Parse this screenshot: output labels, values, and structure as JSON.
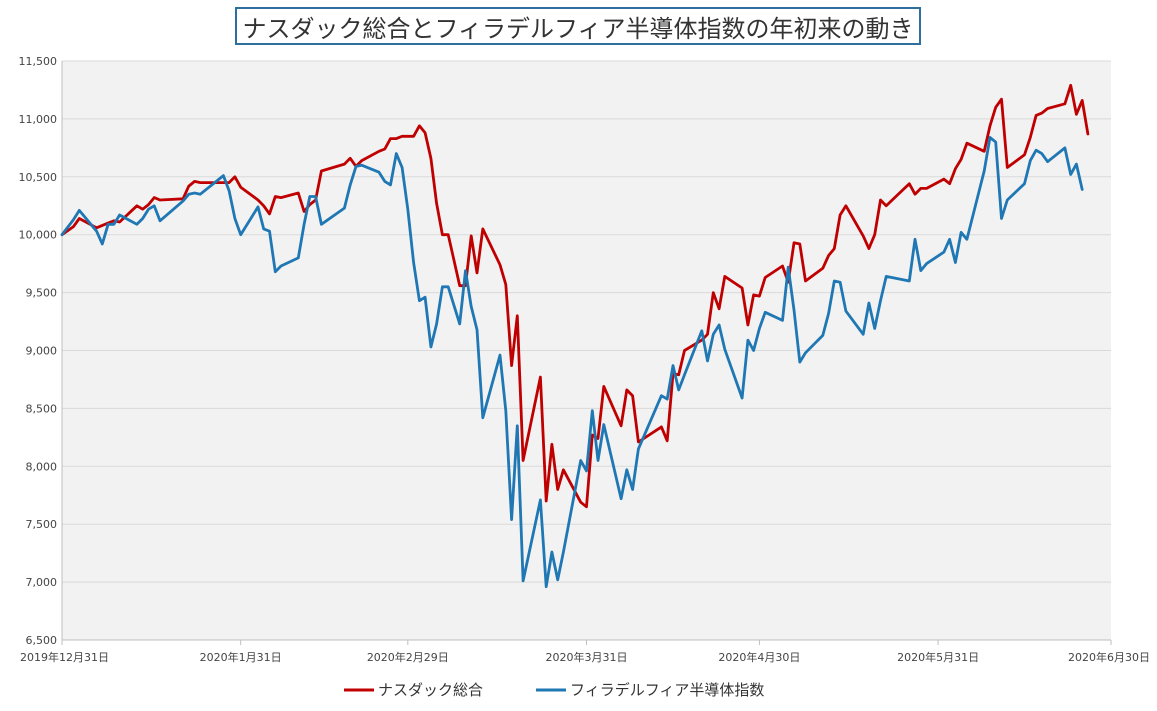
{
  "chart_data": {
    "type": "line",
    "title": "ナスダック総合とフィラデルフィア半導体指数の年初来の動き",
    "ylim": [
      6500,
      11500
    ],
    "yticks": [
      6500,
      7000,
      7500,
      8000,
      8500,
      9000,
      9500,
      10000,
      10500,
      11000,
      11500
    ],
    "ytick_labels": [
      "6,500",
      "7,000",
      "7,500",
      "8,000",
      "8,500",
      "9,000",
      "9,500",
      "10,000",
      "10,500",
      "11,000",
      "11,500"
    ],
    "xlim": [
      "2019-12-31",
      "2020-06-30"
    ],
    "xticks": [
      "2019-12-31",
      "2020-01-31",
      "2020-02-29",
      "2020-03-31",
      "2020-04-30",
      "2020-05-31",
      "2020-06-30"
    ],
    "xtick_labels": [
      "2019年12月31日",
      "2020年1月31日",
      "2020年2月29日",
      "2020年3月31日",
      "2020年4月30日",
      "2020年5月31日",
      "2020年6月30日"
    ],
    "grid": true,
    "legend_position": "bottom",
    "series": [
      {
        "name": "ナスダック総合",
        "color": "#c00000",
        "points": [
          [
            "2019-12-31",
            10000
          ],
          [
            "2020-01-02",
            10070
          ],
          [
            "2020-01-03",
            10140
          ],
          [
            "2020-01-06",
            10060
          ],
          [
            "2020-01-07",
            10080
          ],
          [
            "2020-01-08",
            10100
          ],
          [
            "2020-01-09",
            10120
          ],
          [
            "2020-01-10",
            10110
          ],
          [
            "2020-01-13",
            10250
          ],
          [
            "2020-01-14",
            10220
          ],
          [
            "2020-01-15",
            10260
          ],
          [
            "2020-01-16",
            10320
          ],
          [
            "2020-01-17",
            10300
          ],
          [
            "2020-01-21",
            10310
          ],
          [
            "2020-01-22",
            10420
          ],
          [
            "2020-01-23",
            10460
          ],
          [
            "2020-01-24",
            10450
          ],
          [
            "2020-01-28",
            10450
          ],
          [
            "2020-01-29",
            10450
          ],
          [
            "2020-01-30",
            10500
          ],
          [
            "2020-01-31",
            10410
          ],
          [
            "2020-02-03",
            10300
          ],
          [
            "2020-02-04",
            10250
          ],
          [
            "2020-02-05",
            10180
          ],
          [
            "2020-02-06",
            10330
          ],
          [
            "2020-02-07",
            10320
          ],
          [
            "2020-02-10",
            10360
          ],
          [
            "2020-02-11",
            10200
          ],
          [
            "2020-02-12",
            10260
          ],
          [
            "2020-02-13",
            10300
          ],
          [
            "2020-02-14",
            10550
          ],
          [
            "2020-02-18",
            10610
          ],
          [
            "2020-02-19",
            10660
          ],
          [
            "2020-02-20",
            10590
          ],
          [
            "2020-02-21",
            10640
          ],
          [
            "2020-02-24",
            10720
          ],
          [
            "2020-02-25",
            10740
          ],
          [
            "2020-02-26",
            10830
          ],
          [
            "2020-02-27",
            10830
          ],
          [
            "2020-02-28",
            10850
          ],
          [
            "2020-02-29",
            10850
          ],
          [
            "2020-03-01",
            10850
          ],
          [
            "2020-03-02",
            10940
          ],
          [
            "2020-03-03",
            10880
          ],
          [
            "2020-03-04",
            10660
          ],
          [
            "2020-03-05",
            10270
          ],
          [
            "2020-03-06",
            10000
          ],
          [
            "2020-03-07",
            10000
          ],
          [
            "2020-03-09",
            9560
          ],
          [
            "2020-03-10",
            9560
          ],
          [
            "2020-03-11",
            9990
          ],
          [
            "2020-03-12",
            9670
          ],
          [
            "2020-03-13",
            10050
          ],
          [
            "2020-03-16",
            9740
          ],
          [
            "2020-03-17",
            9570
          ],
          [
            "2020-03-18",
            8870
          ],
          [
            "2020-03-19",
            9300
          ],
          [
            "2020-03-20",
            8050
          ],
          [
            "2020-03-23",
            8770
          ],
          [
            "2020-03-24",
            7700
          ],
          [
            "2020-03-25",
            8190
          ],
          [
            "2020-03-26",
            7800
          ],
          [
            "2020-03-27",
            7970
          ],
          [
            "2020-03-30",
            7690
          ],
          [
            "2020-03-31",
            7650
          ],
          [
            "2020-04-01",
            8270
          ],
          [
            "2020-04-02",
            8240
          ],
          [
            "2020-04-03",
            8690
          ],
          [
            "2020-04-06",
            8350
          ],
          [
            "2020-04-07",
            8660
          ],
          [
            "2020-04-08",
            8610
          ],
          [
            "2020-04-09",
            8210
          ],
          [
            "2020-04-13",
            8340
          ],
          [
            "2020-04-14",
            8220
          ],
          [
            "2020-04-15",
            8800
          ],
          [
            "2020-04-16",
            8790
          ],
          [
            "2020-04-17",
            9000
          ],
          [
            "2020-04-20",
            9090
          ],
          [
            "2020-04-21",
            9140
          ],
          [
            "2020-04-22",
            9500
          ],
          [
            "2020-04-23",
            9360
          ],
          [
            "2020-04-24",
            9640
          ],
          [
            "2020-04-27",
            9540
          ],
          [
            "2020-04-28",
            9220
          ],
          [
            "2020-04-29",
            9480
          ],
          [
            "2020-04-30",
            9470
          ],
          [
            "2020-05-01",
            9630
          ],
          [
            "2020-05-04",
            9730
          ],
          [
            "2020-05-05",
            9590
          ],
          [
            "2020-05-06",
            9930
          ],
          [
            "2020-05-07",
            9920
          ],
          [
            "2020-05-08",
            9600
          ],
          [
            "2020-05-11",
            9710
          ],
          [
            "2020-05-12",
            9820
          ],
          [
            "2020-05-13",
            9880
          ],
          [
            "2020-05-14",
            10170
          ],
          [
            "2020-05-15",
            10250
          ],
          [
            "2020-05-18",
            9990
          ],
          [
            "2020-05-19",
            9880
          ],
          [
            "2020-05-20",
            10000
          ],
          [
            "2020-05-21",
            10300
          ],
          [
            "2020-05-22",
            10250
          ],
          [
            "2020-05-26",
            10440
          ],
          [
            "2020-05-27",
            10350
          ],
          [
            "2020-05-28",
            10400
          ],
          [
            "2020-05-29",
            10400
          ],
          [
            "2020-06-01",
            10480
          ],
          [
            "2020-06-02",
            10440
          ],
          [
            "2020-06-03",
            10570
          ],
          [
            "2020-06-04",
            10650
          ],
          [
            "2020-06-05",
            10790
          ],
          [
            "2020-06-08",
            10720
          ],
          [
            "2020-06-09",
            10940
          ],
          [
            "2020-06-10",
            11100
          ],
          [
            "2020-06-11",
            11170
          ],
          [
            "2020-06-12",
            10580
          ],
          [
            "2020-06-15",
            10690
          ],
          [
            "2020-06-16",
            10840
          ],
          [
            "2020-06-17",
            11030
          ],
          [
            "2020-06-18",
            11050
          ],
          [
            "2020-06-19",
            11090
          ],
          [
            "2020-06-22",
            11130
          ],
          [
            "2020-06-23",
            11290
          ],
          [
            "2020-06-24",
            11040
          ],
          [
            "2020-06-25",
            11160
          ],
          [
            "2020-06-26",
            10870
          ]
        ]
      },
      {
        "name": "フィラデルフィア半導体指数",
        "color": "#1f77b4",
        "points": [
          [
            "2019-12-31",
            10000
          ],
          [
            "2020-01-02",
            10130
          ],
          [
            "2020-01-03",
            10210
          ],
          [
            "2020-01-06",
            10030
          ],
          [
            "2020-01-07",
            9920
          ],
          [
            "2020-01-08",
            10090
          ],
          [
            "2020-01-09",
            10090
          ],
          [
            "2020-01-10",
            10170
          ],
          [
            "2020-01-13",
            10090
          ],
          [
            "2020-01-14",
            10140
          ],
          [
            "2020-01-15",
            10220
          ],
          [
            "2020-01-16",
            10250
          ],
          [
            "2020-01-17",
            10120
          ],
          [
            "2020-01-21",
            10290
          ],
          [
            "2020-01-22",
            10350
          ],
          [
            "2020-01-23",
            10360
          ],
          [
            "2020-01-24",
            10350
          ],
          [
            "2020-01-28",
            10510
          ],
          [
            "2020-01-29",
            10380
          ],
          [
            "2020-01-30",
            10140
          ],
          [
            "2020-01-31",
            10000
          ],
          [
            "2020-02-03",
            10240
          ],
          [
            "2020-02-04",
            10050
          ],
          [
            "2020-02-05",
            10030
          ],
          [
            "2020-02-06",
            9680
          ],
          [
            "2020-02-07",
            9730
          ],
          [
            "2020-02-10",
            9800
          ],
          [
            "2020-02-11",
            10090
          ],
          [
            "2020-02-12",
            10330
          ],
          [
            "2020-02-13",
            10330
          ],
          [
            "2020-02-14",
            10090
          ],
          [
            "2020-02-18",
            10230
          ],
          [
            "2020-02-19",
            10430
          ],
          [
            "2020-02-20",
            10590
          ],
          [
            "2020-02-21",
            10600
          ],
          [
            "2020-02-24",
            10540
          ],
          [
            "2020-02-25",
            10460
          ],
          [
            "2020-02-26",
            10430
          ],
          [
            "2020-02-27",
            10700
          ],
          [
            "2020-02-28",
            10580
          ],
          [
            "2020-02-29",
            10220
          ],
          [
            "2020-03-01",
            9760
          ],
          [
            "2020-03-02",
            9430
          ],
          [
            "2020-03-03",
            9460
          ],
          [
            "2020-03-04",
            9030
          ],
          [
            "2020-03-05",
            9230
          ],
          [
            "2020-03-06",
            9550
          ],
          [
            "2020-03-07",
            9550
          ],
          [
            "2020-03-09",
            9230
          ],
          [
            "2020-03-10",
            9690
          ],
          [
            "2020-03-11",
            9380
          ],
          [
            "2020-03-12",
            9180
          ],
          [
            "2020-03-13",
            8420
          ],
          [
            "2020-03-16",
            8960
          ],
          [
            "2020-03-17",
            8480
          ],
          [
            "2020-03-18",
            7540
          ],
          [
            "2020-03-19",
            8350
          ],
          [
            "2020-03-20",
            7010
          ],
          [
            "2020-03-23",
            7710
          ],
          [
            "2020-03-24",
            6960
          ],
          [
            "2020-03-25",
            7260
          ],
          [
            "2020-03-26",
            7020
          ],
          [
            "2020-03-27",
            7260
          ],
          [
            "2020-03-30",
            8050
          ],
          [
            "2020-03-31",
            7960
          ],
          [
            "2020-04-01",
            8480
          ],
          [
            "2020-04-02",
            8050
          ],
          [
            "2020-04-03",
            8360
          ],
          [
            "2020-04-06",
            7720
          ],
          [
            "2020-04-07",
            7970
          ],
          [
            "2020-04-08",
            7800
          ],
          [
            "2020-04-09",
            8150
          ],
          [
            "2020-04-13",
            8610
          ],
          [
            "2020-04-14",
            8580
          ],
          [
            "2020-04-15",
            8870
          ],
          [
            "2020-04-16",
            8660
          ],
          [
            "2020-04-17",
            8790
          ],
          [
            "2020-04-20",
            9170
          ],
          [
            "2020-04-21",
            8910
          ],
          [
            "2020-04-22",
            9140
          ],
          [
            "2020-04-23",
            9220
          ],
          [
            "2020-04-24",
            9010
          ],
          [
            "2020-04-27",
            8590
          ],
          [
            "2020-04-28",
            9090
          ],
          [
            "2020-04-29",
            9000
          ],
          [
            "2020-04-30",
            9190
          ],
          [
            "2020-05-01",
            9330
          ],
          [
            "2020-05-04",
            9260
          ],
          [
            "2020-05-05",
            9720
          ],
          [
            "2020-05-06",
            9350
          ],
          [
            "2020-05-07",
            8900
          ],
          [
            "2020-05-08",
            8980
          ],
          [
            "2020-05-11",
            9130
          ],
          [
            "2020-05-12",
            9320
          ],
          [
            "2020-05-13",
            9600
          ],
          [
            "2020-05-14",
            9590
          ],
          [
            "2020-05-15",
            9340
          ],
          [
            "2020-05-18",
            9140
          ],
          [
            "2020-05-19",
            9410
          ],
          [
            "2020-05-20",
            9190
          ],
          [
            "2020-05-21",
            9430
          ],
          [
            "2020-05-22",
            9640
          ],
          [
            "2020-05-26",
            9600
          ],
          [
            "2020-05-27",
            9960
          ],
          [
            "2020-05-28",
            9690
          ],
          [
            "2020-05-29",
            9750
          ],
          [
            "2020-06-01",
            9850
          ],
          [
            "2020-06-02",
            9960
          ],
          [
            "2020-06-03",
            9760
          ],
          [
            "2020-06-04",
            10020
          ],
          [
            "2020-06-05",
            9960
          ],
          [
            "2020-06-08",
            10550
          ],
          [
            "2020-06-09",
            10840
          ],
          [
            "2020-06-10",
            10800
          ],
          [
            "2020-06-11",
            10140
          ],
          [
            "2020-06-12",
            10300
          ],
          [
            "2020-06-15",
            10440
          ],
          [
            "2020-06-16",
            10640
          ],
          [
            "2020-06-17",
            10730
          ],
          [
            "2020-06-18",
            10700
          ],
          [
            "2020-06-19",
            10630
          ],
          [
            "2020-06-22",
            10750
          ],
          [
            "2020-06-23",
            10520
          ],
          [
            "2020-06-24",
            10610
          ],
          [
            "2020-06-25",
            10390
          ]
        ]
      }
    ]
  }
}
